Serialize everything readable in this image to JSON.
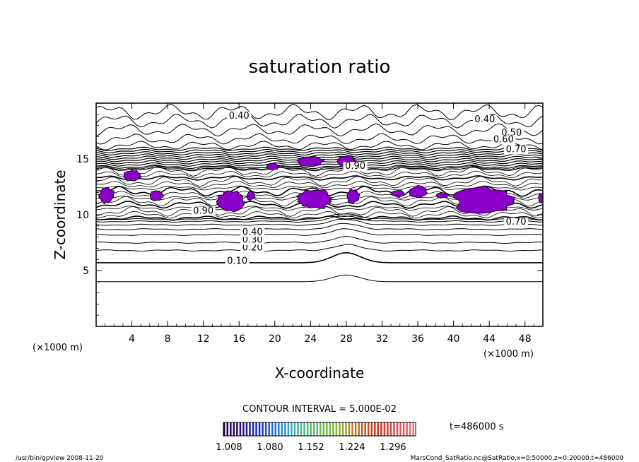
{
  "chart_data": {
    "type": "contour",
    "title": "saturation ratio",
    "xlabel": "X-coordinate",
    "ylabel": "Z-coordinate",
    "x_unit": "(×1000 m)",
    "y_unit": "(×1000 m)",
    "xlim": [
      0,
      50
    ],
    "ylim": [
      0,
      20
    ],
    "x_ticks": [
      "4",
      "8",
      "12",
      "16",
      "20",
      "24",
      "28",
      "32",
      "36",
      "40",
      "44",
      "48"
    ],
    "y_ticks": [
      "5",
      "10",
      "15"
    ],
    "contour_interval": "CONTOUR INTERVAL = 5.000E-02",
    "contour_labels": [
      {
        "text": "0.10",
        "x": 15.8,
        "z": 5.6
      },
      {
        "text": "0.20",
        "x": 17.5,
        "z": 6.8
      },
      {
        "text": "0.30",
        "x": 17.5,
        "z": 7.5
      },
      {
        "text": "0.40",
        "x": 17.5,
        "z": 8.2
      },
      {
        "text": "0.40",
        "x": 16.0,
        "z": 18.6
      },
      {
        "text": "0.40",
        "x": 43.5,
        "z": 18.3
      },
      {
        "text": "0.50",
        "x": 46.5,
        "z": 17.1
      },
      {
        "text": "0.60",
        "x": 45.6,
        "z": 16.5
      },
      {
        "text": "0.70",
        "x": 47.0,
        "z": 15.6
      },
      {
        "text": "0.90",
        "x": 29.0,
        "z": 14.1
      },
      {
        "text": "0.90",
        "x": 12.0,
        "z": 10.1
      },
      {
        "text": "0.70",
        "x": 47.0,
        "z": 9.1
      }
    ],
    "shaded_regions": [
      {
        "x": [
          0.3,
          2.0
        ],
        "z": [
          11.0,
          12.5
        ]
      },
      {
        "x": [
          3.0,
          5.0
        ],
        "z": [
          13.0,
          14.0
        ]
      },
      {
        "x": [
          6.0,
          7.5
        ],
        "z": [
          11.2,
          12.2
        ]
      },
      {
        "x": [
          13.5,
          16.5
        ],
        "z": [
          10.2,
          12.2
        ]
      },
      {
        "x": [
          16.8,
          17.8
        ],
        "z": [
          11.3,
          12.1
        ]
      },
      {
        "x": [
          19.0,
          20.5
        ],
        "z": [
          14.0,
          14.6
        ]
      },
      {
        "x": [
          22.5,
          25.5
        ],
        "z": [
          14.3,
          15.2
        ]
      },
      {
        "x": [
          27.0,
          29.0
        ],
        "z": [
          14.3,
          15.3
        ]
      },
      {
        "x": [
          22.5,
          26.5
        ],
        "z": [
          10.5,
          12.3
        ]
      },
      {
        "x": [
          28.0,
          29.5
        ],
        "z": [
          11.0,
          12.3
        ]
      },
      {
        "x": [
          33.0,
          34.5
        ],
        "z": [
          11.6,
          12.2
        ]
      },
      {
        "x": [
          35.0,
          37.0
        ],
        "z": [
          11.5,
          12.6
        ]
      },
      {
        "x": [
          38.0,
          39.5
        ],
        "z": [
          11.5,
          12.0
        ]
      },
      {
        "x": [
          40.0,
          47.0
        ],
        "z": [
          10.0,
          12.5
        ]
      },
      {
        "x": [
          49.5,
          50.0
        ],
        "z": [
          11.0,
          12.0
        ]
      }
    ],
    "colorbar": {
      "ticks": [
        "1.008",
        "1.080",
        "1.152",
        "1.224",
        "1.296"
      ],
      "colors": [
        "#1a0030",
        "#2a0a80",
        "#1030d0",
        "#2a70e0",
        "#40b0c0",
        "#50c070",
        "#70c040",
        "#a0a030",
        "#c06020",
        "#d03020",
        "#e05050",
        "#f07070"
      ]
    },
    "time_label": "t=486000 s",
    "shade_color": "#8a00c8",
    "grid": false,
    "legend": "none"
  },
  "footer": {
    "left": "/usr/bin/gpview  2008-11-20",
    "right": "MarsCond_SatRatio.nc@SatRatio,x=0:50000,z=0:20000,t=486000"
  }
}
